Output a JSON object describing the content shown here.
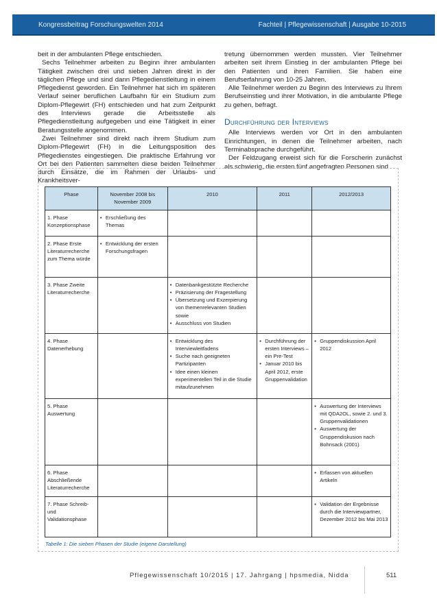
{
  "header": {
    "left": "Kongressbeitrag Forschungswelten 2014",
    "right": "Fachteil | Pflegewissenschaft | Ausgabe 10-2015",
    "color": "#1a5fa0"
  },
  "left_column": [
    "beit in der ambulanten Pflege entschieden.",
    "Sechs Teilnehmer arbeiten zu Beginn ihrer ambulanten Tätigkeit zwischen drei und sieben Jahren direkt in der täglichen Pflege und sind dann Pflegedienstleitung in einem Pflegedienst geworden. Ein Teilnehmer hat sich im späteren Verlauf seiner beruflichen Laufbahn für ein Studium zum Diplom-Pflegewirt (FH) entschieden und hat zum Zeitpunkt des Interviews gerade die Arbeitsstelle als Pflegedienstleitung aufgegeben und eine Tätigkeit in einer Beratungsstelle angenommen.",
    "Zwei Teilnehmer sind direkt nach ihrem Studium zum Diplom-Pflegewirt (FH) in die Leitungsposition des Pflegedienstes eingestiegen. Die praktische Erfahrung vor Ort bei den Patienten sammelten diese beiden Teilnehmer durch Einsätze, die im Rahmen der Urlaubs- und Krankheitsver-"
  ],
  "right_column": {
    "paragraphs_before": [
      "tretung übernommen werden mussten. Vier Teilnehmer arbeiten seit ihrem Einstieg in der ambulanten Pflege bei den Patienten und ihren Familien. Sie haben eine Berufserfahrung von 10-25 Jahren.",
      "Alle Teilnehmer werden zu Beginn des Interviews zu Ihrem Berufseinstieg und ihrer Motivation, in die ambulante Pflege zu gehen, befragt."
    ],
    "heading": "Durchführung der Interviews",
    "paragraphs_after": [
      "Alle Interviews werden vor Ort in den ambulanten Einrichtungen, in denen die Teilnehmer arbeiten, nach Terminabsprache durchgeführt.",
      "Der Feldzugang erweist sich für die Forscherin zunächst als schwierig, die ersten fünf angefragten Personen sind"
    ]
  },
  "table": {
    "headers": [
      "Phase",
      "November 2008 bis November 2009",
      "2010",
      "2011",
      "2012/2013"
    ],
    "rows": [
      {
        "phase": "1. Phase Konzeptionsphase",
        "cells": [
          [
            "Erschließung des Themas"
          ],
          [],
          [],
          []
        ]
      },
      {
        "phase": "2. Phase Erste Literaturrecherche zum Thema würde",
        "cells": [
          [
            "Entwicklung der ersten Forschungsfragen"
          ],
          [],
          [],
          []
        ]
      },
      {
        "phase": "3. Phase Zweite Literaturrecherche",
        "cells": [
          [],
          [
            "Datenbankgestützte Recherche",
            "Präzisierung der Fragestellung",
            "Übersetzung und Exzerpierung von themenrelevanten Studien sowie",
            "Ausschluss von Studien"
          ],
          [],
          []
        ]
      },
      {
        "phase": "4. Phase Datenerhebung",
        "cells": [
          [],
          [
            "Entwicklung des Interviewleitfadens",
            "Suche nach geeigneten Partizipanten",
            "Idee einen kleinen experimentellen Teil in die Studie mitaufzunehmen"
          ],
          [
            "Durchführung der ersten Interviews – ein Pre-Test",
            "Januar 2010 bis April 2012, erste Gruppenvalidation"
          ],
          [
            "Gruppendiskussion April 2012"
          ]
        ]
      },
      {
        "phase": "5. Phase Auswertung",
        "cells": [
          [],
          [],
          [],
          [
            "Auswertung der Interviews mit QDA2OL, sowie 2. und 3. Gruppenvalidationen",
            "Auswertung der Gruppendiskusion nach Bohnsack (2001)"
          ]
        ]
      },
      {
        "phase": "6. Phase Abschließende Literaturrecherche",
        "cells": [
          [],
          [],
          [],
          [
            "Erfassen von aktuellen Artikeln"
          ]
        ]
      },
      {
        "phase": "7. Phase Schreib- und Validationsphase",
        "cells": [
          [],
          [],
          [],
          [
            "Validation der Ergebnisse durch die Interviewpartner, Dezember 2012 bis Mai 2013"
          ]
        ]
      }
    ],
    "caption": "Tabelle 1: Die sieben Phasen der Studie (eigene Darstellung)"
  },
  "footer": {
    "text": "Pflegewissenschaft 10/2015 | 17. Jahrgang | hpsmedia, Nidda",
    "page": "511"
  }
}
